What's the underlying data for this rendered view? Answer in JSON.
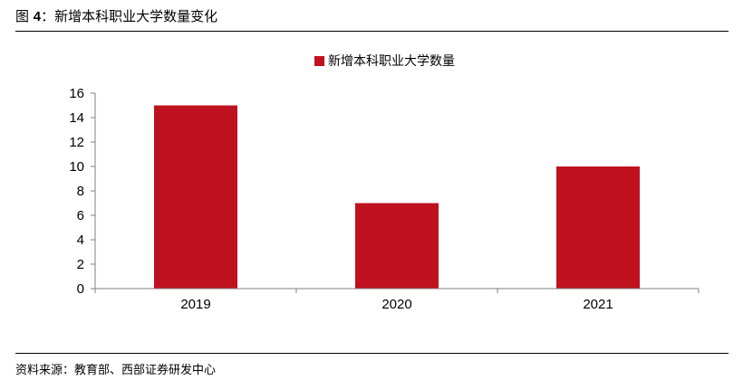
{
  "figure": {
    "title_prefix": "图 ",
    "title_number": "4",
    "title_text": "：新增本科职业大学数量变化",
    "source": "资料来源：教育部、西部证券研发中心"
  },
  "chart_data": {
    "type": "bar",
    "categories": [
      "2019",
      "2020",
      "2021"
    ],
    "series": [
      {
        "name": "新增本科职业大学数量",
        "values": [
          15,
          7,
          10
        ],
        "color": "#c0111f"
      }
    ],
    "ylim": [
      0,
      16
    ],
    "yticks": [
      0,
      2,
      4,
      6,
      8,
      10,
      12,
      14,
      16
    ],
    "grid": false,
    "legend_position": "top-center"
  }
}
